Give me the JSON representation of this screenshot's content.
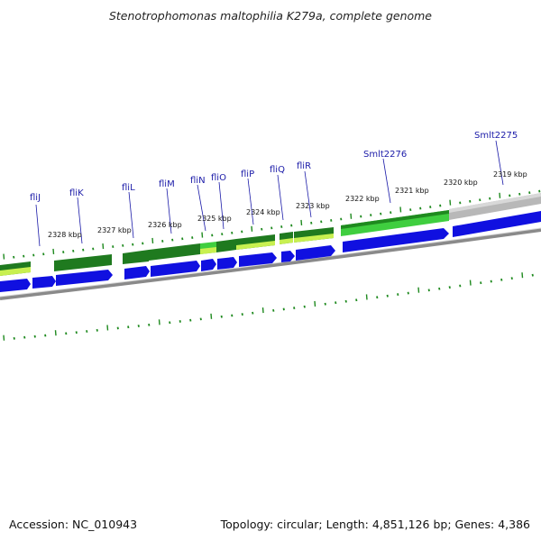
{
  "title": "Stenotrophomonas maltophilia K279a, complete genome",
  "footer": {
    "accession": "Accession: NC_010943",
    "topology": "Topology: circular; Length: 4,851,126 bp; Genes: 4,386"
  },
  "colors": {
    "cds": "#1010e0",
    "gene_dark": "#1f7a1f",
    "gene_light": "#3fce3f",
    "gene_yellow": "#c8f050",
    "backbone": "#888888",
    "label": "#1a1aa8",
    "ticks": "#1f8a1f"
  },
  "gene_labels": [
    {
      "id": "flij",
      "text": "fliJ"
    },
    {
      "id": "flik",
      "text": "fliK"
    },
    {
      "id": "flil",
      "text": "fliL"
    },
    {
      "id": "flim",
      "text": "fliM"
    },
    {
      "id": "flin",
      "text": "fliN"
    },
    {
      "id": "flio",
      "text": "fliO"
    },
    {
      "id": "flip",
      "text": "fliP"
    },
    {
      "id": "fliq",
      "text": "fliQ"
    },
    {
      "id": "flir",
      "text": "fliR"
    },
    {
      "id": "smlt2276",
      "text": "Smlt2276"
    },
    {
      "id": "smlt2275",
      "text": "Smlt2275"
    }
  ],
  "kbp_labels": [
    {
      "id": "k2328",
      "text": "2328 kbp"
    },
    {
      "id": "k2327",
      "text": "2327 kbp"
    },
    {
      "id": "k2326",
      "text": "2326 kbp"
    },
    {
      "id": "k2325",
      "text": "2325 kbp"
    },
    {
      "id": "k2324",
      "text": "2324 kbp"
    },
    {
      "id": "k2323",
      "text": "2323 kbp"
    },
    {
      "id": "k2322",
      "text": "2322 kbp"
    },
    {
      "id": "k2321",
      "text": "2321 kbp"
    },
    {
      "id": "k2320",
      "text": "2320 kbp"
    },
    {
      "id": "k2319",
      "text": "2319 kbp"
    }
  ]
}
